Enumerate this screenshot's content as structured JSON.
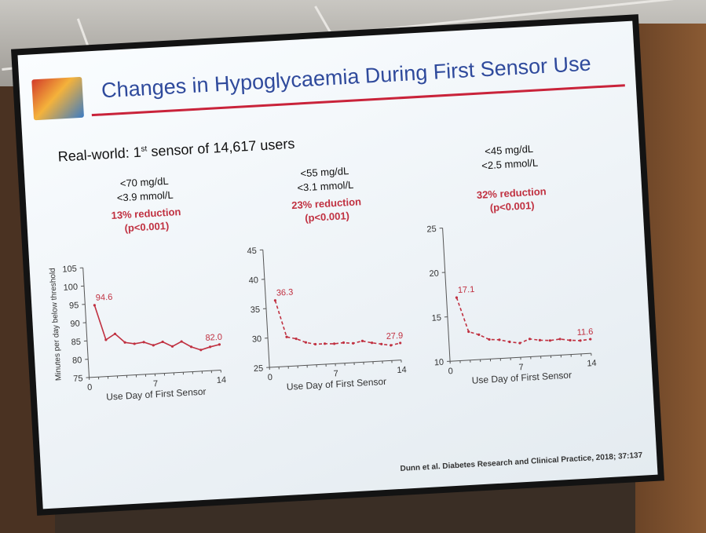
{
  "slide": {
    "title": "Changes in Hypoglycaemia During First Sensor Use",
    "subtitle_pre": "Real-world: 1",
    "subtitle_sup": "st",
    "subtitle_post": " sensor of 14,617 users",
    "citation": "Dunn et al. Diabetes Research and Clinical Practice, 2018; 37:137"
  },
  "colors": {
    "title": "#2f4a9c",
    "accent": "#c03040",
    "line": "#c03040"
  },
  "chart_data": [
    {
      "type": "line",
      "threshold_mg": "<70 mg/dL",
      "threshold_mmol": "<3.9 mmol/L",
      "reduction": "13% reduction",
      "p_value": "(p<0.001)",
      "ylabel": "Minutes per day below threshold",
      "xlabel": "Use Day of First Sensor",
      "ylim": [
        75,
        105
      ],
      "yticks": [
        75,
        80,
        85,
        90,
        95,
        100,
        105
      ],
      "xlim": [
        0,
        14
      ],
      "xticks": [
        0,
        7,
        14
      ],
      "line_style": "solid",
      "x": [
        1,
        2,
        3,
        4,
        5,
        6,
        7,
        8,
        9,
        10,
        11,
        12,
        13,
        14
      ],
      "values": [
        94.6,
        85.0,
        86.5,
        84.0,
        83.5,
        83.8,
        82.8,
        83.6,
        82.2,
        83.4,
        81.8,
        80.8,
        81.5,
        82.0
      ],
      "labels": [
        {
          "x": 1,
          "text": "94.6"
        },
        {
          "x": 14,
          "text": "82.0"
        }
      ]
    },
    {
      "type": "line",
      "threshold_mg": "<55 mg/dL",
      "threshold_mmol": "<3.1 mmol/L",
      "reduction": "23% reduction",
      "p_value": "(p<0.001)",
      "xlabel": "Use Day of First Sensor",
      "ylim": [
        25,
        45
      ],
      "yticks": [
        25,
        30,
        35,
        40,
        45
      ],
      "xlim": [
        0,
        14
      ],
      "xticks": [
        0,
        7,
        14
      ],
      "line_style": "dashed",
      "x": [
        1,
        2,
        3,
        4,
        5,
        6,
        7,
        8,
        9,
        10,
        11,
        12,
        13,
        14
      ],
      "values": [
        36.3,
        30.0,
        29.6,
        28.9,
        28.5,
        28.5,
        28.4,
        28.5,
        28.3,
        28.6,
        28.2,
        27.9,
        27.6,
        27.9
      ],
      "labels": [
        {
          "x": 1,
          "text": "36.3"
        },
        {
          "x": 14,
          "text": "27.9"
        }
      ]
    },
    {
      "type": "line",
      "threshold_mg": "<45 mg/dL",
      "threshold_mmol": "<2.5 mmol/L",
      "reduction": "32% reduction",
      "p_value": "(p<0.001)",
      "xlabel": "Use Day of First Sensor",
      "ylim": [
        10,
        25
      ],
      "yticks": [
        10,
        15,
        20,
        25
      ],
      "xlim": [
        0,
        14
      ],
      "xticks": [
        0,
        7,
        14
      ],
      "line_style": "dashed",
      "x": [
        1,
        2,
        3,
        4,
        5,
        6,
        7,
        8,
        9,
        10,
        11,
        12,
        13,
        14
      ],
      "values": [
        17.1,
        13.2,
        12.8,
        12.2,
        12.1,
        11.8,
        11.6,
        12.0,
        11.8,
        11.7,
        11.8,
        11.6,
        11.5,
        11.6
      ],
      "labels": [
        {
          "x": 1,
          "text": "17.1"
        },
        {
          "x": 14,
          "text": "11.6"
        }
      ]
    }
  ]
}
